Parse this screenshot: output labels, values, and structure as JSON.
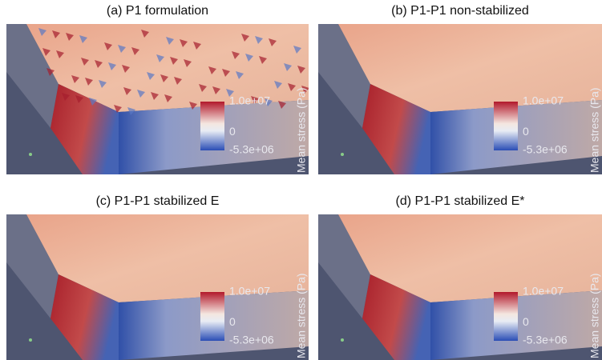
{
  "panels": [
    {
      "title": "(a) P1 formulation",
      "colorbar": {
        "max": "1.0e+07",
        "mid": "0",
        "min": "-5.3e+06",
        "label": "Mean stress (Pa)"
      }
    },
    {
      "title": "(b) P1-P1 non-stabilized",
      "colorbar": {
        "max": "1.0e+07",
        "mid": "0",
        "min": "-5.3e+06",
        "label": "Mean stress (Pa)"
      }
    },
    {
      "title": "(c) P1-P1 stabilized E",
      "colorbar": {
        "max": "1.0e+07",
        "mid": "0",
        "min": "-5.3e+06",
        "label": "Mean stress (Pa)"
      }
    },
    {
      "title": "(d) P1-P1 stabilized E*",
      "colorbar": {
        "max": "1.0e+07",
        "mid": "0",
        "min": "-5.3e+06",
        "label": "Mean stress (Pa)"
      }
    }
  ]
}
